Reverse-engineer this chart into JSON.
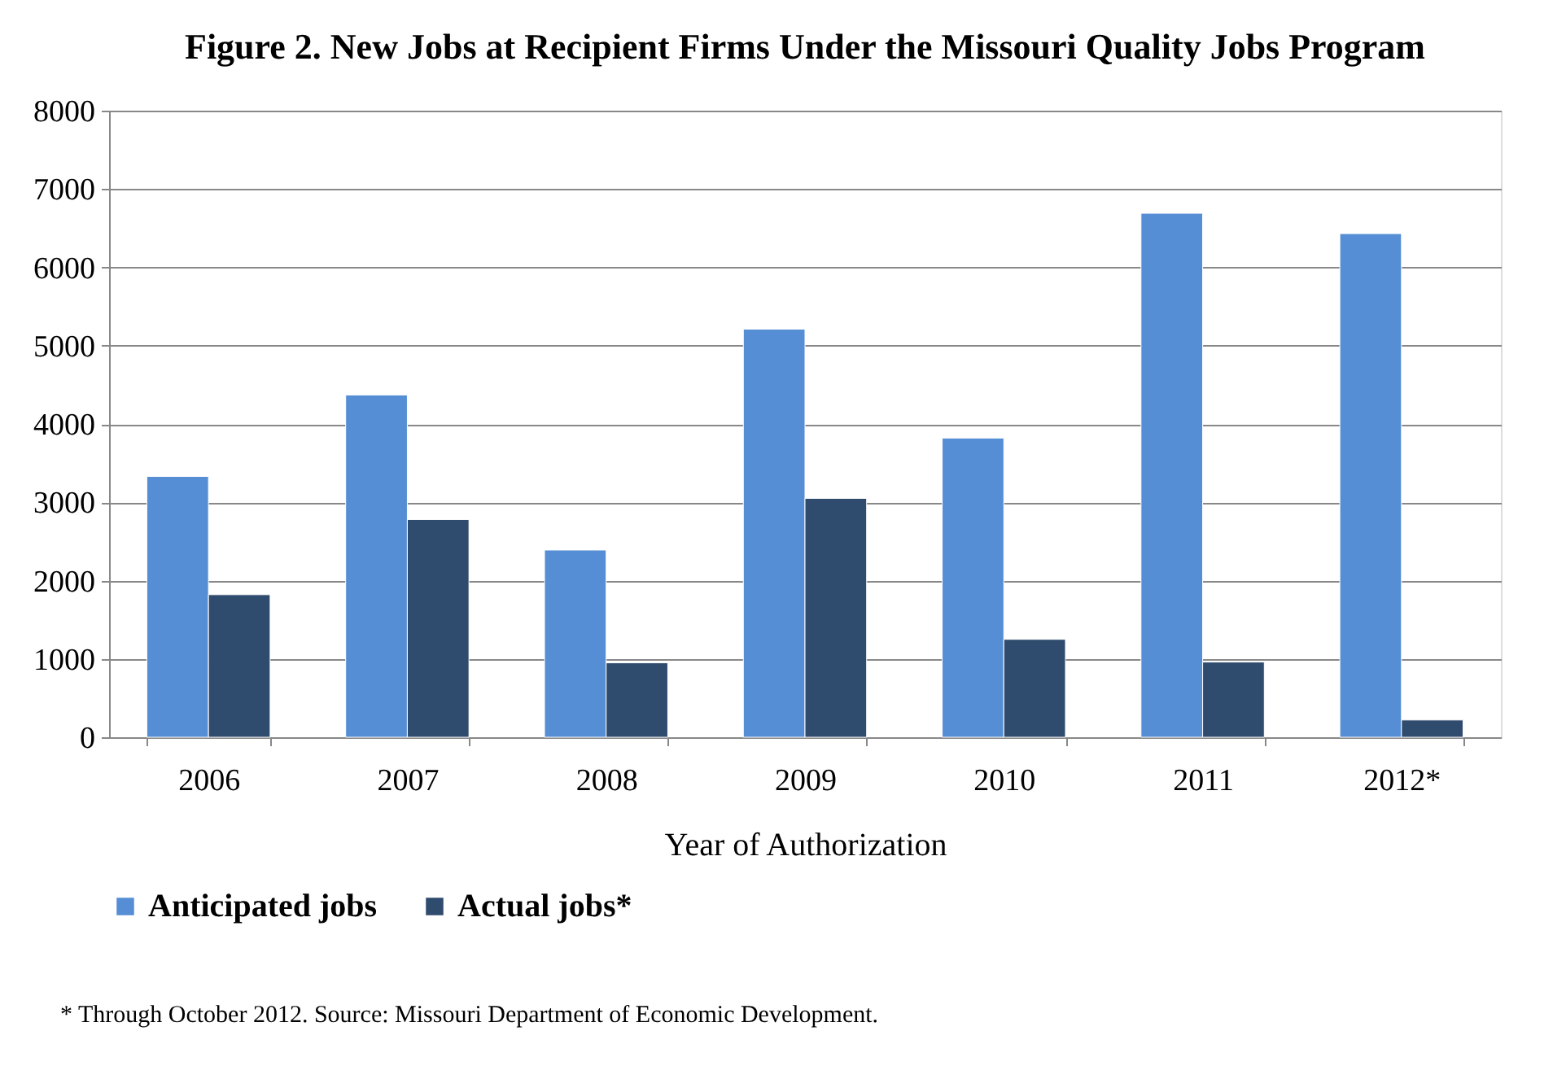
{
  "chart_data": {
    "type": "bar",
    "title": "Figure 2. New Jobs at Recipient Firms Under the Missouri Quality Jobs Program",
    "xlabel": "Year of Authorization",
    "categories": [
      "2006",
      "2007",
      "2008",
      "2009",
      "2010",
      "2011",
      "2012*"
    ],
    "series": [
      {
        "name": "Anticipated jobs",
        "color": "#558ed5",
        "values": [
          3330,
          4370,
          2390,
          5210,
          3820,
          6690,
          6430
        ]
      },
      {
        "name": "Actual jobs*",
        "color": "#2f4b6e",
        "values": [
          1820,
          2780,
          950,
          3050,
          1250,
          960,
          220
        ]
      }
    ],
    "ylim": [
      0,
      8000
    ],
    "yticks": [
      0,
      1000,
      2000,
      3000,
      4000,
      5000,
      6000,
      7000,
      8000
    ],
    "grid": "y",
    "legend": "bottom",
    "annotations": [
      "* Through October 2012. Source: Missouri Department of Economic Development."
    ]
  }
}
